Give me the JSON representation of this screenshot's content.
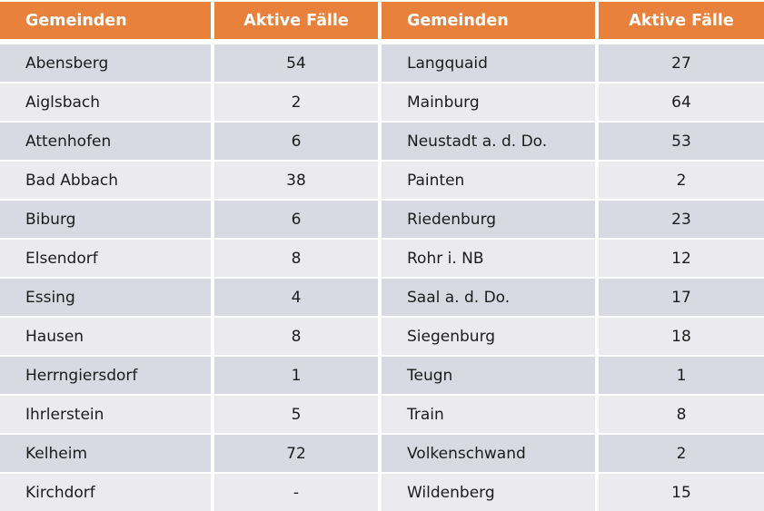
{
  "chart_data": {
    "type": "table",
    "columns": [
      "Gemeinden",
      "Aktive Fälle",
      "Gemeinden",
      "Aktive Fälle"
    ],
    "rows": [
      [
        "Abensberg",
        "54",
        "Langquaid",
        "27"
      ],
      [
        "Aiglsbach",
        "2",
        "Mainburg",
        "64"
      ],
      [
        "Attenhofen",
        "6",
        "Neustadt a. d. Do.",
        "53"
      ],
      [
        "Bad Abbach",
        "38",
        "Painten",
        "2"
      ],
      [
        "Biburg",
        "6",
        "Riedenburg",
        "23"
      ],
      [
        "Elsendorf",
        "8",
        "Rohr i. NB",
        "12"
      ],
      [
        "Essing",
        "4",
        "Saal a. d. Do.",
        "17"
      ],
      [
        "Hausen",
        "8",
        "Siegenburg",
        "18"
      ],
      [
        "Herrngiersdorf",
        "1",
        "Teugn",
        "1"
      ],
      [
        "Ihrlerstein",
        "5",
        "Train",
        "8"
      ],
      [
        "Kelheim",
        "72",
        "Volkenschwand",
        "2"
      ],
      [
        "Kirchdorf",
        "-",
        "Wildenberg",
        "15"
      ]
    ],
    "layout": {
      "grid": "two side-by-side municipality/value column pairs",
      "row_striping": "alternating, first data row darker",
      "header_alignment": "name left, value centered"
    },
    "colors": {
      "header_bg": "#E8813C",
      "header_text": "#FFFFFF",
      "row_dark": "#D8D9E2",
      "row_light": "#EAEAEF",
      "cell_text": "#1C1C1C",
      "divider": "#FFFFFF"
    }
  }
}
